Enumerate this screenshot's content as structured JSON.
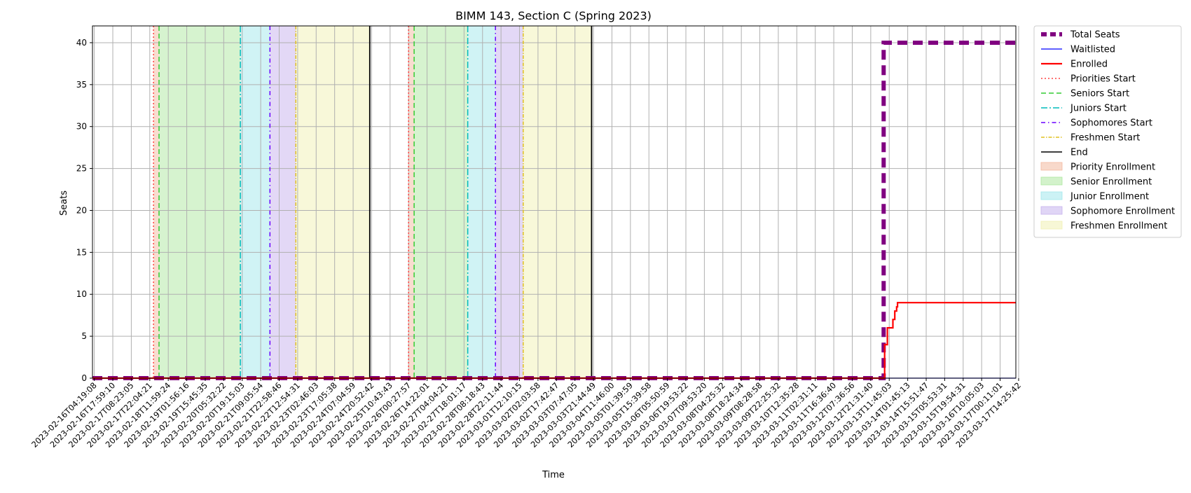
{
  "chart_data": {
    "type": "line",
    "title": "BIMM 143, Section C (Spring 2023)",
    "xlabel": "Time",
    "ylabel": "Seats",
    "ylim": [
      0,
      42
    ],
    "yticks": [
      0,
      5,
      10,
      15,
      20,
      25,
      30,
      35,
      40
    ],
    "grid": true,
    "legend_position": "outside right, top",
    "x_tick_labels": [
      "2023-02-16T04:19:08",
      "2023-02-16T17:59:10",
      "2023-02-17T08:23:05",
      "2023-02-17T22:04:21",
      "2023-02-18T11:59:24",
      "2023-02-19T01:56:16",
      "2023-02-19T15:45:35",
      "2023-02-20T05:32:22",
      "2023-02-20T19:15:03",
      "2023-02-21T09:05:54",
      "2023-02-21T22:58:46",
      "2023-02-22T12:54:31",
      "2023-02-23T02:46:03",
      "2023-02-23T17:05:38",
      "2023-02-24T07:04:59",
      "2023-02-24T20:52:42",
      "2023-02-25T10:43:43",
      "2023-02-26T00:27:57",
      "2023-02-26T14:22:01",
      "2023-02-27T04:04:21",
      "2023-02-27T18:01:17",
      "2023-02-28T08:18:43",
      "2023-02-28T22:11:44",
      "2023-03-01T12:10:15",
      "2023-03-02T02:03:58",
      "2023-03-02T17:42:47",
      "2023-03-03T07:47:05",
      "2023-03-03T21:44:49",
      "2023-03-04T11:46:00",
      "2023-03-05T01:39:59",
      "2023-03-05T15:39:58",
      "2023-03-06T05:50:59",
      "2023-03-06T19:53:22",
      "2023-03-07T09:53:20",
      "2023-03-08T04:25:32",
      "2023-03-08T18:24:34",
      "2023-03-09T08:28:58",
      "2023-03-09T22:25:32",
      "2023-03-10T12:35:28",
      "2023-03-11T02:31:11",
      "2023-03-11T16:36:40",
      "2023-03-12T07:36:56",
      "2023-03-12T21:31:40",
      "2023-03-13T11:45:03",
      "2023-03-14T01:45:13",
      "2023-03-14T15:51:47",
      "2023-03-15T05:53:31",
      "2023-03-15T19:54:31",
      "2023-03-16T10:05:03",
      "2023-03-17T00:11:01",
      "2023-03-17T14:25:42"
    ],
    "x_range": [
      -0.1,
      49.85
    ],
    "series": [
      {
        "name": "Total Seats",
        "color": "#800080",
        "style": "dashed-thick",
        "x": [
          -0.1,
          42.7,
          42.7,
          49.85
        ],
        "y": [
          0,
          0,
          40,
          40
        ]
      },
      {
        "name": "Waitlisted",
        "color": "#0000ff",
        "style": "solid-thin",
        "x": [
          -0.1,
          49.85
        ],
        "y": [
          0,
          0
        ]
      },
      {
        "name": "Enrolled",
        "color": "#ff0000",
        "style": "solid",
        "x": [
          -0.1,
          42.75,
          42.75,
          42.9,
          42.9,
          43.2,
          43.2,
          43.3,
          43.3,
          43.4,
          43.4,
          43.45,
          43.45,
          43.55,
          43.55,
          49.85
        ],
        "y": [
          0,
          0,
          4,
          4,
          6,
          6,
          7,
          7,
          8,
          8,
          8.5,
          8.5,
          9,
          9,
          9,
          9
        ]
      }
    ],
    "events": [
      {
        "name": "Priorities Start",
        "color": "#ff4040",
        "style": "dotted",
        "x": [
          3.2,
          17.0
        ]
      },
      {
        "name": "Seniors Start",
        "color": "#33cc33",
        "style": "dashed",
        "x": [
          3.5,
          17.3
        ]
      },
      {
        "name": "Juniors Start",
        "color": "#00bbbb",
        "style": "dashdot",
        "x": [
          7.9,
          20.2
        ]
      },
      {
        "name": "Sophomores Start",
        "color": "#6a00ff",
        "style": "dashdot-loose",
        "x": [
          9.5,
          21.7
        ]
      },
      {
        "name": "Freshmen Start",
        "color": "#e0c020",
        "style": "dashdot-fine",
        "x": [
          10.9,
          23.2
        ]
      },
      {
        "name": "End",
        "color": "#000000",
        "style": "solid",
        "x": [
          14.9,
          26.9
        ]
      }
    ],
    "regions": [
      {
        "name": "Priority Enrollment",
        "color": "#f3b9a0",
        "spans": [
          [
            3.2,
            3.5
          ],
          [
            17.0,
            17.3
          ]
        ]
      },
      {
        "name": "Senior Enrollment",
        "color": "#aee8a0",
        "spans": [
          [
            3.5,
            7.9
          ],
          [
            17.3,
            20.2
          ]
        ]
      },
      {
        "name": "Junior Enrollment",
        "color": "#a2e8ec",
        "spans": [
          [
            7.9,
            9.5
          ],
          [
            20.2,
            21.7
          ]
        ]
      },
      {
        "name": "Sophomore Enrollment",
        "color": "#c7b2ee",
        "spans": [
          [
            9.5,
            10.9
          ],
          [
            21.7,
            23.2
          ]
        ]
      },
      {
        "name": "Freshmen Enrollment",
        "color": "#f1f1b4",
        "spans": [
          [
            10.9,
            14.9
          ],
          [
            23.2,
            26.9
          ]
        ]
      }
    ]
  }
}
